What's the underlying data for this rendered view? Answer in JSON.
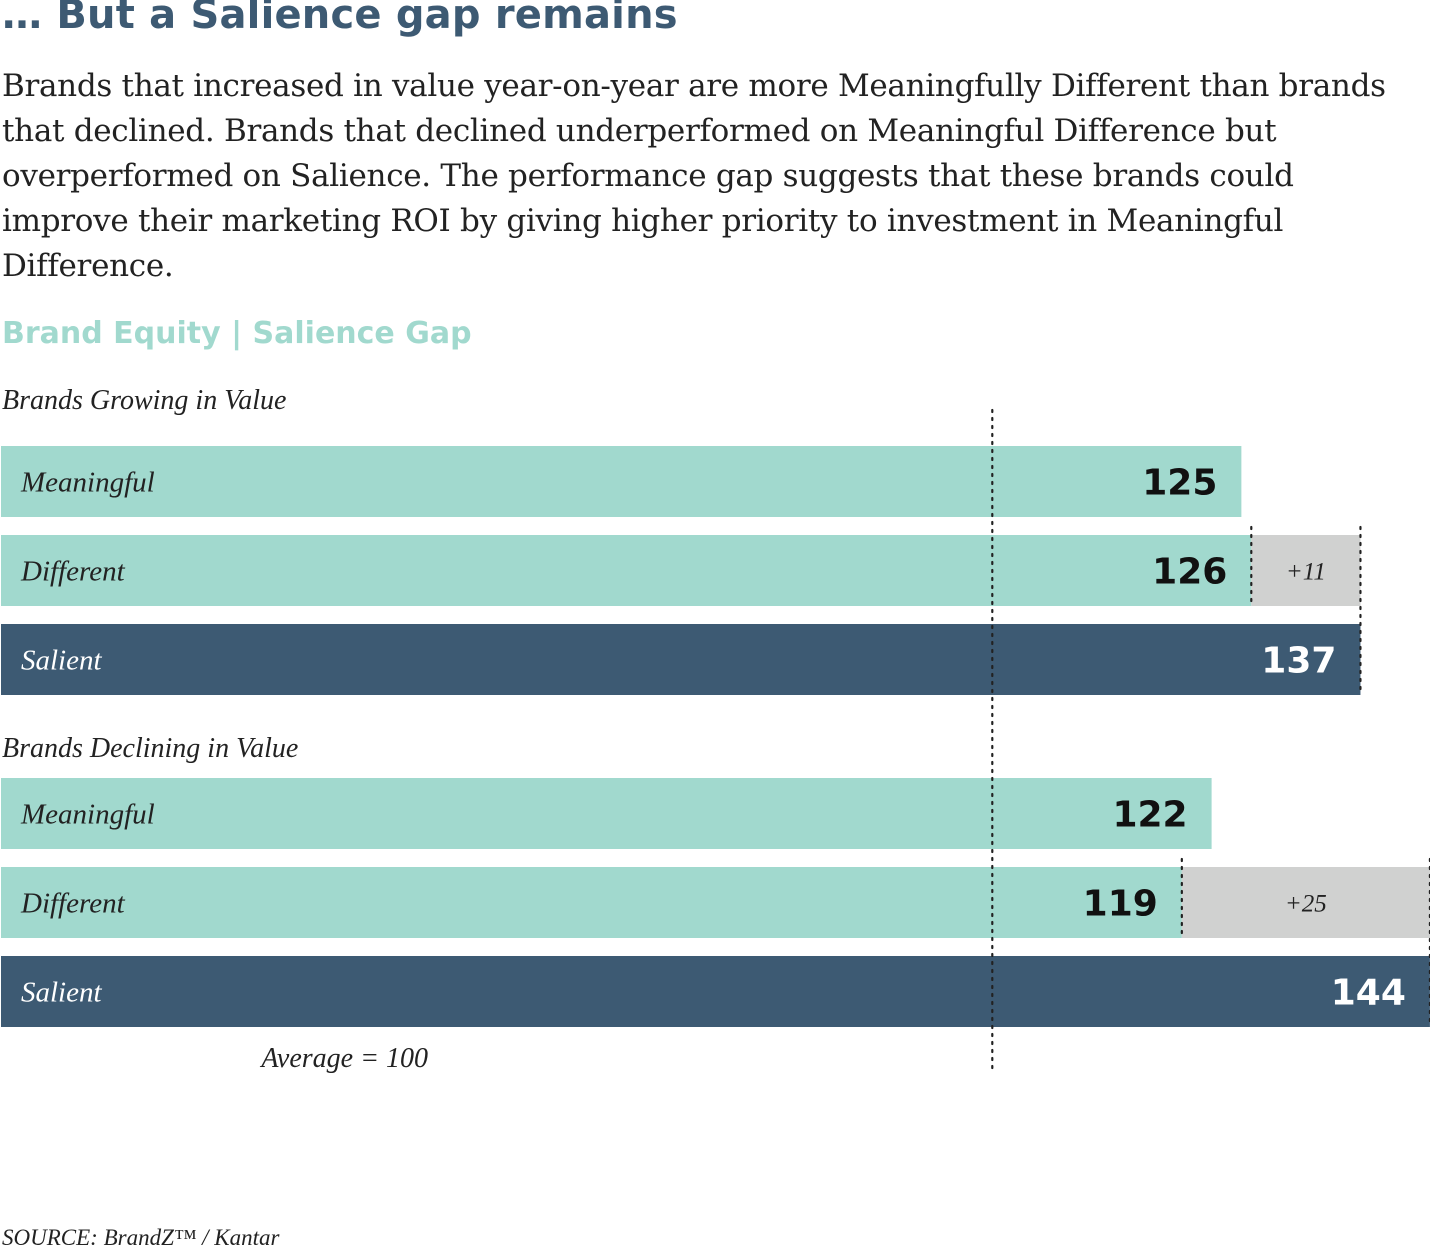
{
  "heading": "… But a Salience gap remains",
  "intro": "Brands that increased in value year-on-year are more Meaningfully Different than brands that declined. Brands that declined underperformed on Meaningful Difference but overperformed on Salience. The performance gap suggests that these brands could improve their marketing ROI by giving higher priority to investment in Meaningful Difference.",
  "source": "SOURCE: BrandZ™ / Kantar",
  "colors": {
    "meaningful": "#a1d9ce",
    "different": "#a1d9ce",
    "salient": "#3d5a73",
    "gap": "#d0d1d0",
    "heading": "#3d5a73",
    "chart_title": "#a1d9ce",
    "text": "#222222"
  },
  "chart_data": {
    "type": "bar",
    "orientation": "horizontal",
    "title": "Brand Equity | Salience Gap",
    "reference_line": {
      "value": 100,
      "label": "Average = 100"
    },
    "groups": [
      {
        "name": "Brands Growing in Value",
        "bars": [
          {
            "label": "Meaningful",
            "value": 125
          },
          {
            "label": "Different",
            "value": 126,
            "gap": {
              "label": "+11",
              "from": 126,
              "to": 137
            }
          },
          {
            "label": "Salient",
            "value": 137
          }
        ]
      },
      {
        "name": "Brands Declining in Value",
        "bars": [
          {
            "label": "Meaningful",
            "value": 122
          },
          {
            "label": "Different",
            "value": 119,
            "gap": {
              "label": "+25",
              "from": 119,
              "to": 144
            }
          },
          {
            "label": "Salient",
            "value": 144
          }
        ]
      }
    ]
  }
}
